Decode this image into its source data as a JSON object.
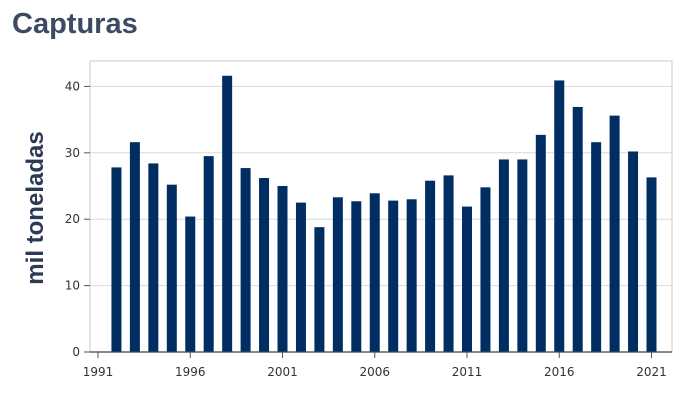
{
  "chart_data": {
    "type": "bar",
    "title": "Capturas",
    "xlabel": "",
    "ylabel": "mil toneladas",
    "x": [
      1992,
      1993,
      1994,
      1995,
      1996,
      1997,
      1998,
      1999,
      2000,
      2001,
      2002,
      2003,
      2004,
      2005,
      2006,
      2007,
      2008,
      2009,
      2010,
      2011,
      2012,
      2013,
      2014,
      2015,
      2016,
      2017,
      2018,
      2019,
      2020,
      2021
    ],
    "values": [
      27.8,
      31.6,
      28.4,
      25.2,
      20.4,
      29.5,
      41.6,
      27.7,
      26.2,
      25.0,
      22.5,
      18.8,
      23.3,
      22.7,
      23.9,
      22.8,
      23.0,
      25.8,
      26.6,
      21.9,
      24.8,
      29.0,
      29.0,
      32.7,
      40.9,
      36.9,
      31.6,
      35.6,
      30.2,
      26.3
    ],
    "xlim": [
      1991,
      2021
    ],
    "ylim": [
      0,
      44
    ],
    "xticks": [
      "1991",
      "1996",
      "2001",
      "2006",
      "2011",
      "2016",
      "2021"
    ],
    "yticks": [
      "0",
      "10",
      "20",
      "30",
      "40"
    ],
    "bar_color": "#002d62",
    "grid": "horizontal"
  }
}
